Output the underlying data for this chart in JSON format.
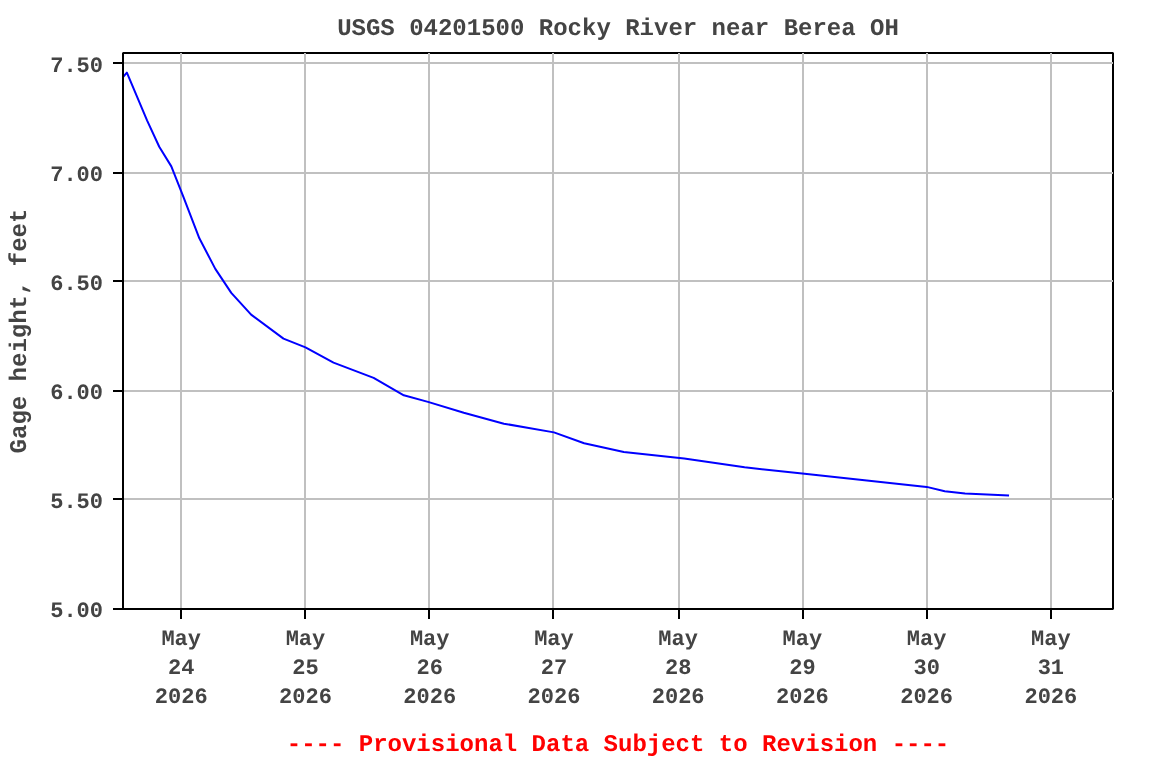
{
  "chart_data": {
    "type": "line",
    "title": "USGS 04201500 Rocky River near Berea OH",
    "ylabel": "Gage height, feet",
    "annotations": [
      "---- Provisional Data Subject to Revision ----"
    ],
    "x": [
      "2026-05-23T12:45",
      "2026-05-23T13:30",
      "2026-05-23T17:25",
      "2026-05-23T19:45",
      "2026-05-23T22:05",
      "2026-05-24T00:25",
      "2026-05-24T03:30",
      "2026-05-24T06:35",
      "2026-05-24T09:40",
      "2026-05-24T13:30",
      "2026-05-24T19:45",
      "2026-05-25T00:00",
      "2026-05-25T05:25",
      "2026-05-25T13:10",
      "2026-05-25T19:00",
      "2026-05-25T23:40",
      "2026-05-26T06:35",
      "2026-05-26T14:20",
      "2026-05-27T00:00",
      "2026-05-27T05:50",
      "2026-05-27T13:30",
      "2026-05-28T01:10",
      "2026-05-28T12:50",
      "2026-05-29T00:25",
      "2026-05-29T12:00",
      "2026-05-30T00:00",
      "2026-05-30T03:30",
      "2026-05-30T07:25",
      "2026-05-30T15:55"
    ],
    "series": [
      {
        "color": "#0000ff",
        "values": [
          7.44,
          7.46,
          7.24,
          7.12,
          7.03,
          6.89,
          6.7,
          6.56,
          6.45,
          6.35,
          6.24,
          6.2,
          6.13,
          6.06,
          5.98,
          5.95,
          5.9,
          5.85,
          5.81,
          5.76,
          5.72,
          5.69,
          5.65,
          5.62,
          5.59,
          5.56,
          5.54,
          5.53,
          5.52
        ]
      }
    ],
    "xlim": [
      "2026-05-23T12:45",
      "2026-05-31T12:00"
    ],
    "ylim": [
      5.0,
      7.55
    ],
    "xticks": [
      {
        "value": "2026-05-24",
        "label": "May\n24\n2026"
      },
      {
        "value": "2026-05-25",
        "label": "May\n25\n2026"
      },
      {
        "value": "2026-05-26",
        "label": "May\n26\n2026"
      },
      {
        "value": "2026-05-27",
        "label": "May\n27\n2026"
      },
      {
        "value": "2026-05-28",
        "label": "May\n28\n2026"
      },
      {
        "value": "2026-05-29",
        "label": "May\n29\n2026"
      },
      {
        "value": "2026-05-30",
        "label": "May\n30\n2026"
      },
      {
        "value": "2026-05-31",
        "label": "May\n31\n2026"
      }
    ],
    "yticks": [
      {
        "value": 5.0,
        "label": "5.00"
      },
      {
        "value": 5.5,
        "label": "5.50"
      },
      {
        "value": 6.0,
        "label": "6.00"
      },
      {
        "value": 6.5,
        "label": "6.50"
      },
      {
        "value": 7.0,
        "label": "7.00"
      },
      {
        "value": 7.5,
        "label": "7.50"
      }
    ],
    "grid": true,
    "line_style": "solid",
    "marker": "none"
  }
}
